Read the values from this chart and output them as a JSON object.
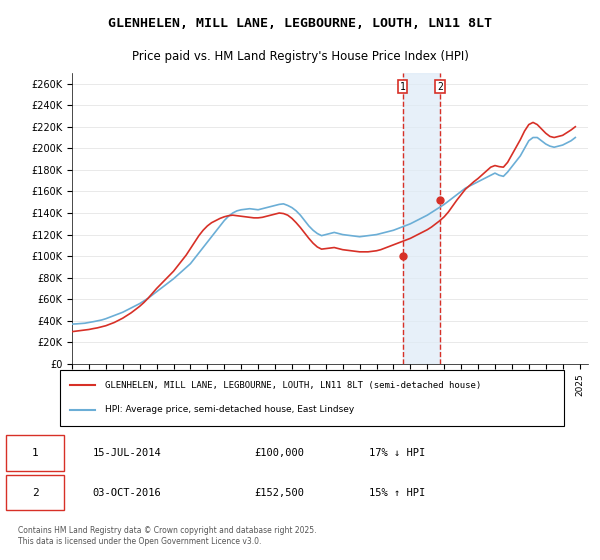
{
  "title": "GLENHELEN, MILL LANE, LEGBOURNE, LOUTH, LN11 8LT",
  "subtitle": "Price paid vs. HM Land Registry's House Price Index (HPI)",
  "legend_line1": "GLENHELEN, MILL LANE, LEGBOURNE, LOUTH, LN11 8LT (semi-detached house)",
  "legend_line2": "HPI: Average price, semi-detached house, East Lindsey",
  "footer": "Contains HM Land Registry data © Crown copyright and database right 2025.\nThis data is licensed under the Open Government Licence v3.0.",
  "sale1_label": "1",
  "sale1_date": "15-JUL-2014",
  "sale1_price": "£100,000",
  "sale1_note": "17% ↓ HPI",
  "sale2_label": "2",
  "sale2_date": "03-OCT-2016",
  "sale2_price": "£152,500",
  "sale2_note": "15% ↑ HPI",
  "sale1_x": 2014.54,
  "sale2_x": 2016.75,
  "sale1_y": 100000,
  "sale2_y": 152500,
  "vline1_x": 2014.54,
  "vline2_x": 2016.75,
  "hpi_color": "#6baed6",
  "price_color": "#d73027",
  "vline_color": "#d73027",
  "shade_color": "#deebf7",
  "ylim": [
    0,
    270000
  ],
  "ytick_step": 20000,
  "xmin": 1995,
  "xmax": 2025.5,
  "background_color": "#ffffff",
  "hpi_data_x": [
    1995.0,
    1995.25,
    1995.5,
    1995.75,
    1996.0,
    1996.25,
    1996.5,
    1996.75,
    1997.0,
    1997.25,
    1997.5,
    1997.75,
    1998.0,
    1998.25,
    1998.5,
    1998.75,
    1999.0,
    1999.25,
    1999.5,
    1999.75,
    2000.0,
    2000.25,
    2000.5,
    2000.75,
    2001.0,
    2001.25,
    2001.5,
    2001.75,
    2002.0,
    2002.25,
    2002.5,
    2002.75,
    2003.0,
    2003.25,
    2003.5,
    2003.75,
    2004.0,
    2004.25,
    2004.5,
    2004.75,
    2005.0,
    2005.25,
    2005.5,
    2005.75,
    2006.0,
    2006.25,
    2006.5,
    2006.75,
    2007.0,
    2007.25,
    2007.5,
    2007.75,
    2008.0,
    2008.25,
    2008.5,
    2008.75,
    2009.0,
    2009.25,
    2009.5,
    2009.75,
    2010.0,
    2010.25,
    2010.5,
    2010.75,
    2011.0,
    2011.25,
    2011.5,
    2011.75,
    2012.0,
    2012.25,
    2012.5,
    2012.75,
    2013.0,
    2013.25,
    2013.5,
    2013.75,
    2014.0,
    2014.25,
    2014.5,
    2014.75,
    2015.0,
    2015.25,
    2015.5,
    2015.75,
    2016.0,
    2016.25,
    2016.5,
    2016.75,
    2017.0,
    2017.25,
    2017.5,
    2017.75,
    2018.0,
    2018.25,
    2018.5,
    2018.75,
    2019.0,
    2019.25,
    2019.5,
    2019.75,
    2020.0,
    2020.25,
    2020.5,
    2020.75,
    2021.0,
    2021.25,
    2021.5,
    2021.75,
    2022.0,
    2022.25,
    2022.5,
    2022.75,
    2023.0,
    2023.25,
    2023.5,
    2023.75,
    2024.0,
    2024.25,
    2024.5,
    2024.75
  ],
  "hpi_data_y": [
    37000,
    37200,
    37500,
    37800,
    38500,
    39200,
    40000,
    40800,
    42000,
    43500,
    45000,
    46500,
    48000,
    50000,
    52000,
    54000,
    56000,
    58500,
    61000,
    64000,
    67000,
    70000,
    73000,
    76000,
    79000,
    82500,
    86000,
    89500,
    93000,
    98000,
    103000,
    108000,
    113000,
    118000,
    123000,
    128000,
    133000,
    137000,
    140000,
    142000,
    143000,
    143500,
    144000,
    143500,
    143000,
    144000,
    145000,
    146000,
    147000,
    148000,
    148500,
    147000,
    145000,
    142000,
    138000,
    133000,
    128000,
    124000,
    121000,
    119000,
    120000,
    121000,
    122000,
    121000,
    120000,
    119500,
    119000,
    118500,
    118000,
    118500,
    119000,
    119500,
    120000,
    121000,
    122000,
    123000,
    124000,
    125500,
    127000,
    128500,
    130000,
    132000,
    134000,
    136000,
    138000,
    140500,
    143000,
    145500,
    148000,
    151000,
    154000,
    157000,
    160000,
    163000,
    165000,
    167000,
    169000,
    171000,
    173000,
    175000,
    177000,
    175000,
    174000,
    178000,
    183000,
    188000,
    193000,
    200000,
    207000,
    210000,
    210000,
    207000,
    204000,
    202000,
    201000,
    202000,
    203000,
    205000,
    207000,
    210000
  ],
  "price_data_x": [
    1995.0,
    1995.25,
    1995.5,
    1995.75,
    1996.0,
    1996.25,
    1996.5,
    1996.75,
    1997.0,
    1997.25,
    1997.5,
    1997.75,
    1998.0,
    1998.25,
    1998.5,
    1998.75,
    1999.0,
    1999.25,
    1999.5,
    1999.75,
    2000.0,
    2000.25,
    2000.5,
    2000.75,
    2001.0,
    2001.25,
    2001.5,
    2001.75,
    2002.0,
    2002.25,
    2002.5,
    2002.75,
    2003.0,
    2003.25,
    2003.5,
    2003.75,
    2004.0,
    2004.25,
    2004.5,
    2004.75,
    2005.0,
    2005.25,
    2005.5,
    2005.75,
    2006.0,
    2006.25,
    2006.5,
    2006.75,
    2007.0,
    2007.25,
    2007.5,
    2007.75,
    2008.0,
    2008.25,
    2008.5,
    2008.75,
    2009.0,
    2009.25,
    2009.5,
    2009.75,
    2010.0,
    2010.25,
    2010.5,
    2010.75,
    2011.0,
    2011.25,
    2011.5,
    2011.75,
    2012.0,
    2012.25,
    2012.5,
    2012.75,
    2013.0,
    2013.25,
    2013.5,
    2013.75,
    2014.0,
    2014.25,
    2014.5,
    2014.75,
    2015.0,
    2015.25,
    2015.5,
    2015.75,
    2016.0,
    2016.25,
    2016.5,
    2016.75,
    2017.0,
    2017.25,
    2017.5,
    2017.75,
    2018.0,
    2018.25,
    2018.5,
    2018.75,
    2019.0,
    2019.25,
    2019.5,
    2019.75,
    2020.0,
    2020.25,
    2020.5,
    2020.75,
    2021.0,
    2021.25,
    2021.5,
    2021.75,
    2022.0,
    2022.25,
    2022.5,
    2022.75,
    2023.0,
    2023.25,
    2023.5,
    2023.75,
    2024.0,
    2024.25,
    2024.5,
    2024.75
  ],
  "price_data_y": [
    30000,
    30500,
    31000,
    31500,
    32000,
    32800,
    33500,
    34500,
    35500,
    37000,
    38500,
    40500,
    42500,
    45000,
    47500,
    50500,
    53500,
    57000,
    61000,
    65500,
    70000,
    74000,
    78000,
    82000,
    86000,
    91000,
    96000,
    101000,
    107000,
    113000,
    119000,
    124000,
    128000,
    131000,
    133000,
    135000,
    136500,
    137500,
    138000,
    137500,
    137000,
    136500,
    136000,
    135500,
    135500,
    136000,
    137000,
    138000,
    139000,
    140000,
    139500,
    138000,
    135000,
    131000,
    126500,
    121500,
    116500,
    112000,
    108500,
    106500,
    107000,
    107500,
    108000,
    107000,
    106000,
    105500,
    105000,
    104500,
    104000,
    104000,
    104000,
    104500,
    105000,
    106000,
    107500,
    109000,
    110500,
    112000,
    113500,
    115000,
    116500,
    118500,
    120500,
    122500,
    124500,
    127000,
    130000,
    133000,
    136500,
    141000,
    146500,
    152000,
    157000,
    162000,
    165500,
    169000,
    172000,
    175500,
    179000,
    182500,
    184000,
    183000,
    182500,
    187000,
    194000,
    201000,
    208000,
    216000,
    222000,
    224000,
    222000,
    218000,
    214000,
    211000,
    210000,
    211000,
    212000,
    214500,
    217000,
    220000
  ]
}
